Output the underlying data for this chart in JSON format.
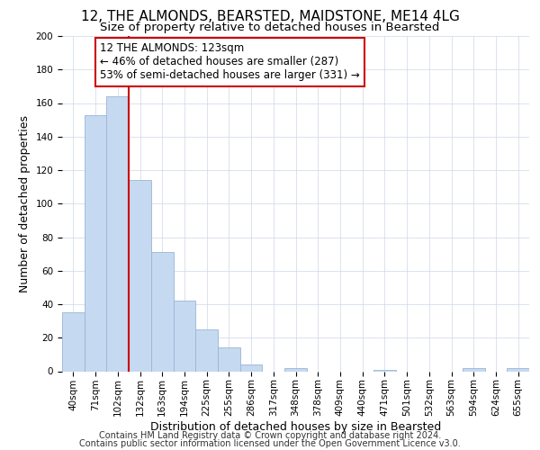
{
  "title": "12, THE ALMONDS, BEARSTED, MAIDSTONE, ME14 4LG",
  "subtitle": "Size of property relative to detached houses in Bearsted",
  "xlabel": "Distribution of detached houses by size in Bearsted",
  "ylabel": "Number of detached properties",
  "bar_labels": [
    "40sqm",
    "71sqm",
    "102sqm",
    "132sqm",
    "163sqm",
    "194sqm",
    "225sqm",
    "255sqm",
    "286sqm",
    "317sqm",
    "348sqm",
    "378sqm",
    "409sqm",
    "440sqm",
    "471sqm",
    "501sqm",
    "532sqm",
    "563sqm",
    "594sqm",
    "624sqm",
    "655sqm"
  ],
  "bar_values": [
    35,
    153,
    164,
    114,
    71,
    42,
    25,
    14,
    4,
    0,
    2,
    0,
    0,
    0,
    1,
    0,
    0,
    0,
    2,
    0,
    2
  ],
  "bar_color": "#c5d9f1",
  "bar_edge_color": "#9ab5d4",
  "vline_color": "#cc0000",
  "ylim": [
    0,
    200
  ],
  "yticks": [
    0,
    20,
    40,
    60,
    80,
    100,
    120,
    140,
    160,
    180,
    200
  ],
  "annotation_title": "12 THE ALMONDS: 123sqm",
  "annotation_line1": "← 46% of detached houses are smaller (287)",
  "annotation_line2": "53% of semi-detached houses are larger (331) →",
  "annotation_box_color": "#ffffff",
  "annotation_box_edge": "#cc0000",
  "footer_line1": "Contains HM Land Registry data © Crown copyright and database right 2024.",
  "footer_line2": "Contains public sector information licensed under the Open Government Licence v3.0.",
  "title_fontsize": 11,
  "subtitle_fontsize": 9.5,
  "axis_label_fontsize": 9,
  "tick_fontsize": 7.5,
  "annotation_fontsize": 8.5,
  "footer_fontsize": 7
}
